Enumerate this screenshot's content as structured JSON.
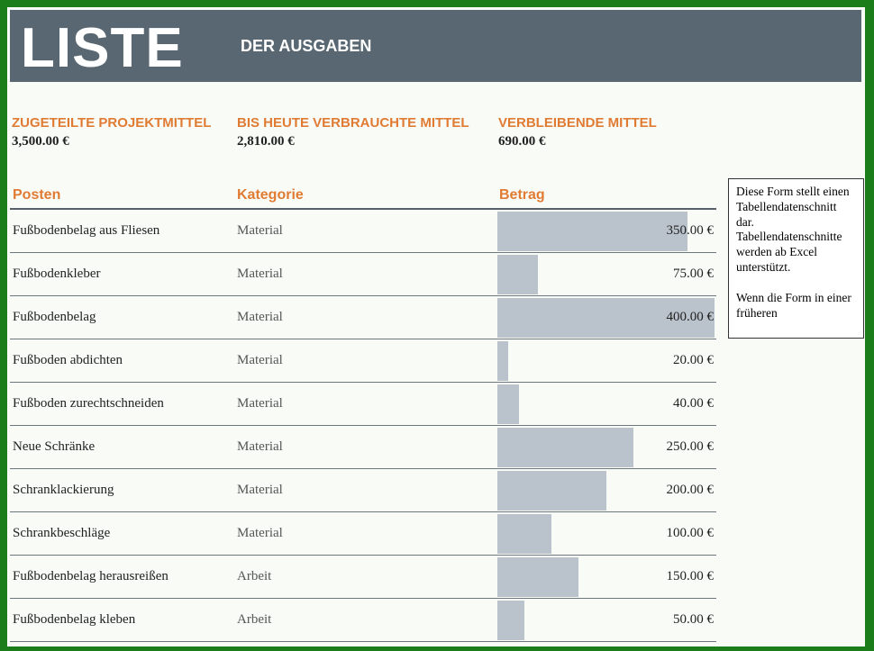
{
  "header": {
    "title_big": "LISTE",
    "title_small": "DER AUSGABEN"
  },
  "summary": [
    {
      "label": "ZUGETEILTE PROJEKTMITTEL",
      "value": "3,500.00 €"
    },
    {
      "label": "BIS HEUTE VERBRAUCHTE MITTEL",
      "value": "2,810.00 €"
    },
    {
      "label": "VERBLEIBENDE MITTEL",
      "value": "690.00 €"
    }
  ],
  "table": {
    "columns": [
      "Posten",
      "Kategorie",
      "Betrag"
    ],
    "max_amount": 400,
    "rows": [
      {
        "posten": "Fußbodenbelag aus Fliesen",
        "kategorie": "Material",
        "betrag": "350.00 €",
        "amount": 350
      },
      {
        "posten": "Fußbodenkleber",
        "kategorie": "Material",
        "betrag": "75.00 €",
        "amount": 75
      },
      {
        "posten": "Fußbodenbelag",
        "kategorie": "Material",
        "betrag": "400.00 €",
        "amount": 400
      },
      {
        "posten": "Fußboden abdichten",
        "kategorie": "Material",
        "betrag": "20.00 €",
        "amount": 20
      },
      {
        "posten": "Fußboden zurechtschneiden",
        "kategorie": "Material",
        "betrag": "40.00 €",
        "amount": 40
      },
      {
        "posten": "Neue Schränke",
        "kategorie": "Material",
        "betrag": "250.00 €",
        "amount": 250
      },
      {
        "posten": "Schranklackierung",
        "kategorie": "Material",
        "betrag": "200.00 €",
        "amount": 200
      },
      {
        "posten": "Schrankbeschläge",
        "kategorie": "Material",
        "betrag": "100.00 €",
        "amount": 100
      },
      {
        "posten": "Fußbodenbelag herausreißen",
        "kategorie": "Arbeit",
        "betrag": "150.00 €",
        "amount": 150
      },
      {
        "posten": "Fußbodenbelag kleben",
        "kategorie": "Arbeit",
        "betrag": "50.00 €",
        "amount": 50
      }
    ]
  },
  "note": {
    "paragraph1": "Diese Form stellt einen Tabellendatenschnitt dar. Tabellendatenschnitte werden ab Excel unterstützt.",
    "paragraph2": "Wenn die Form in einer früheren"
  },
  "colors": {
    "frame": "#1a7d1a",
    "banner": "#586771",
    "accent": "#e07b33",
    "bar": "#bac3cb"
  }
}
